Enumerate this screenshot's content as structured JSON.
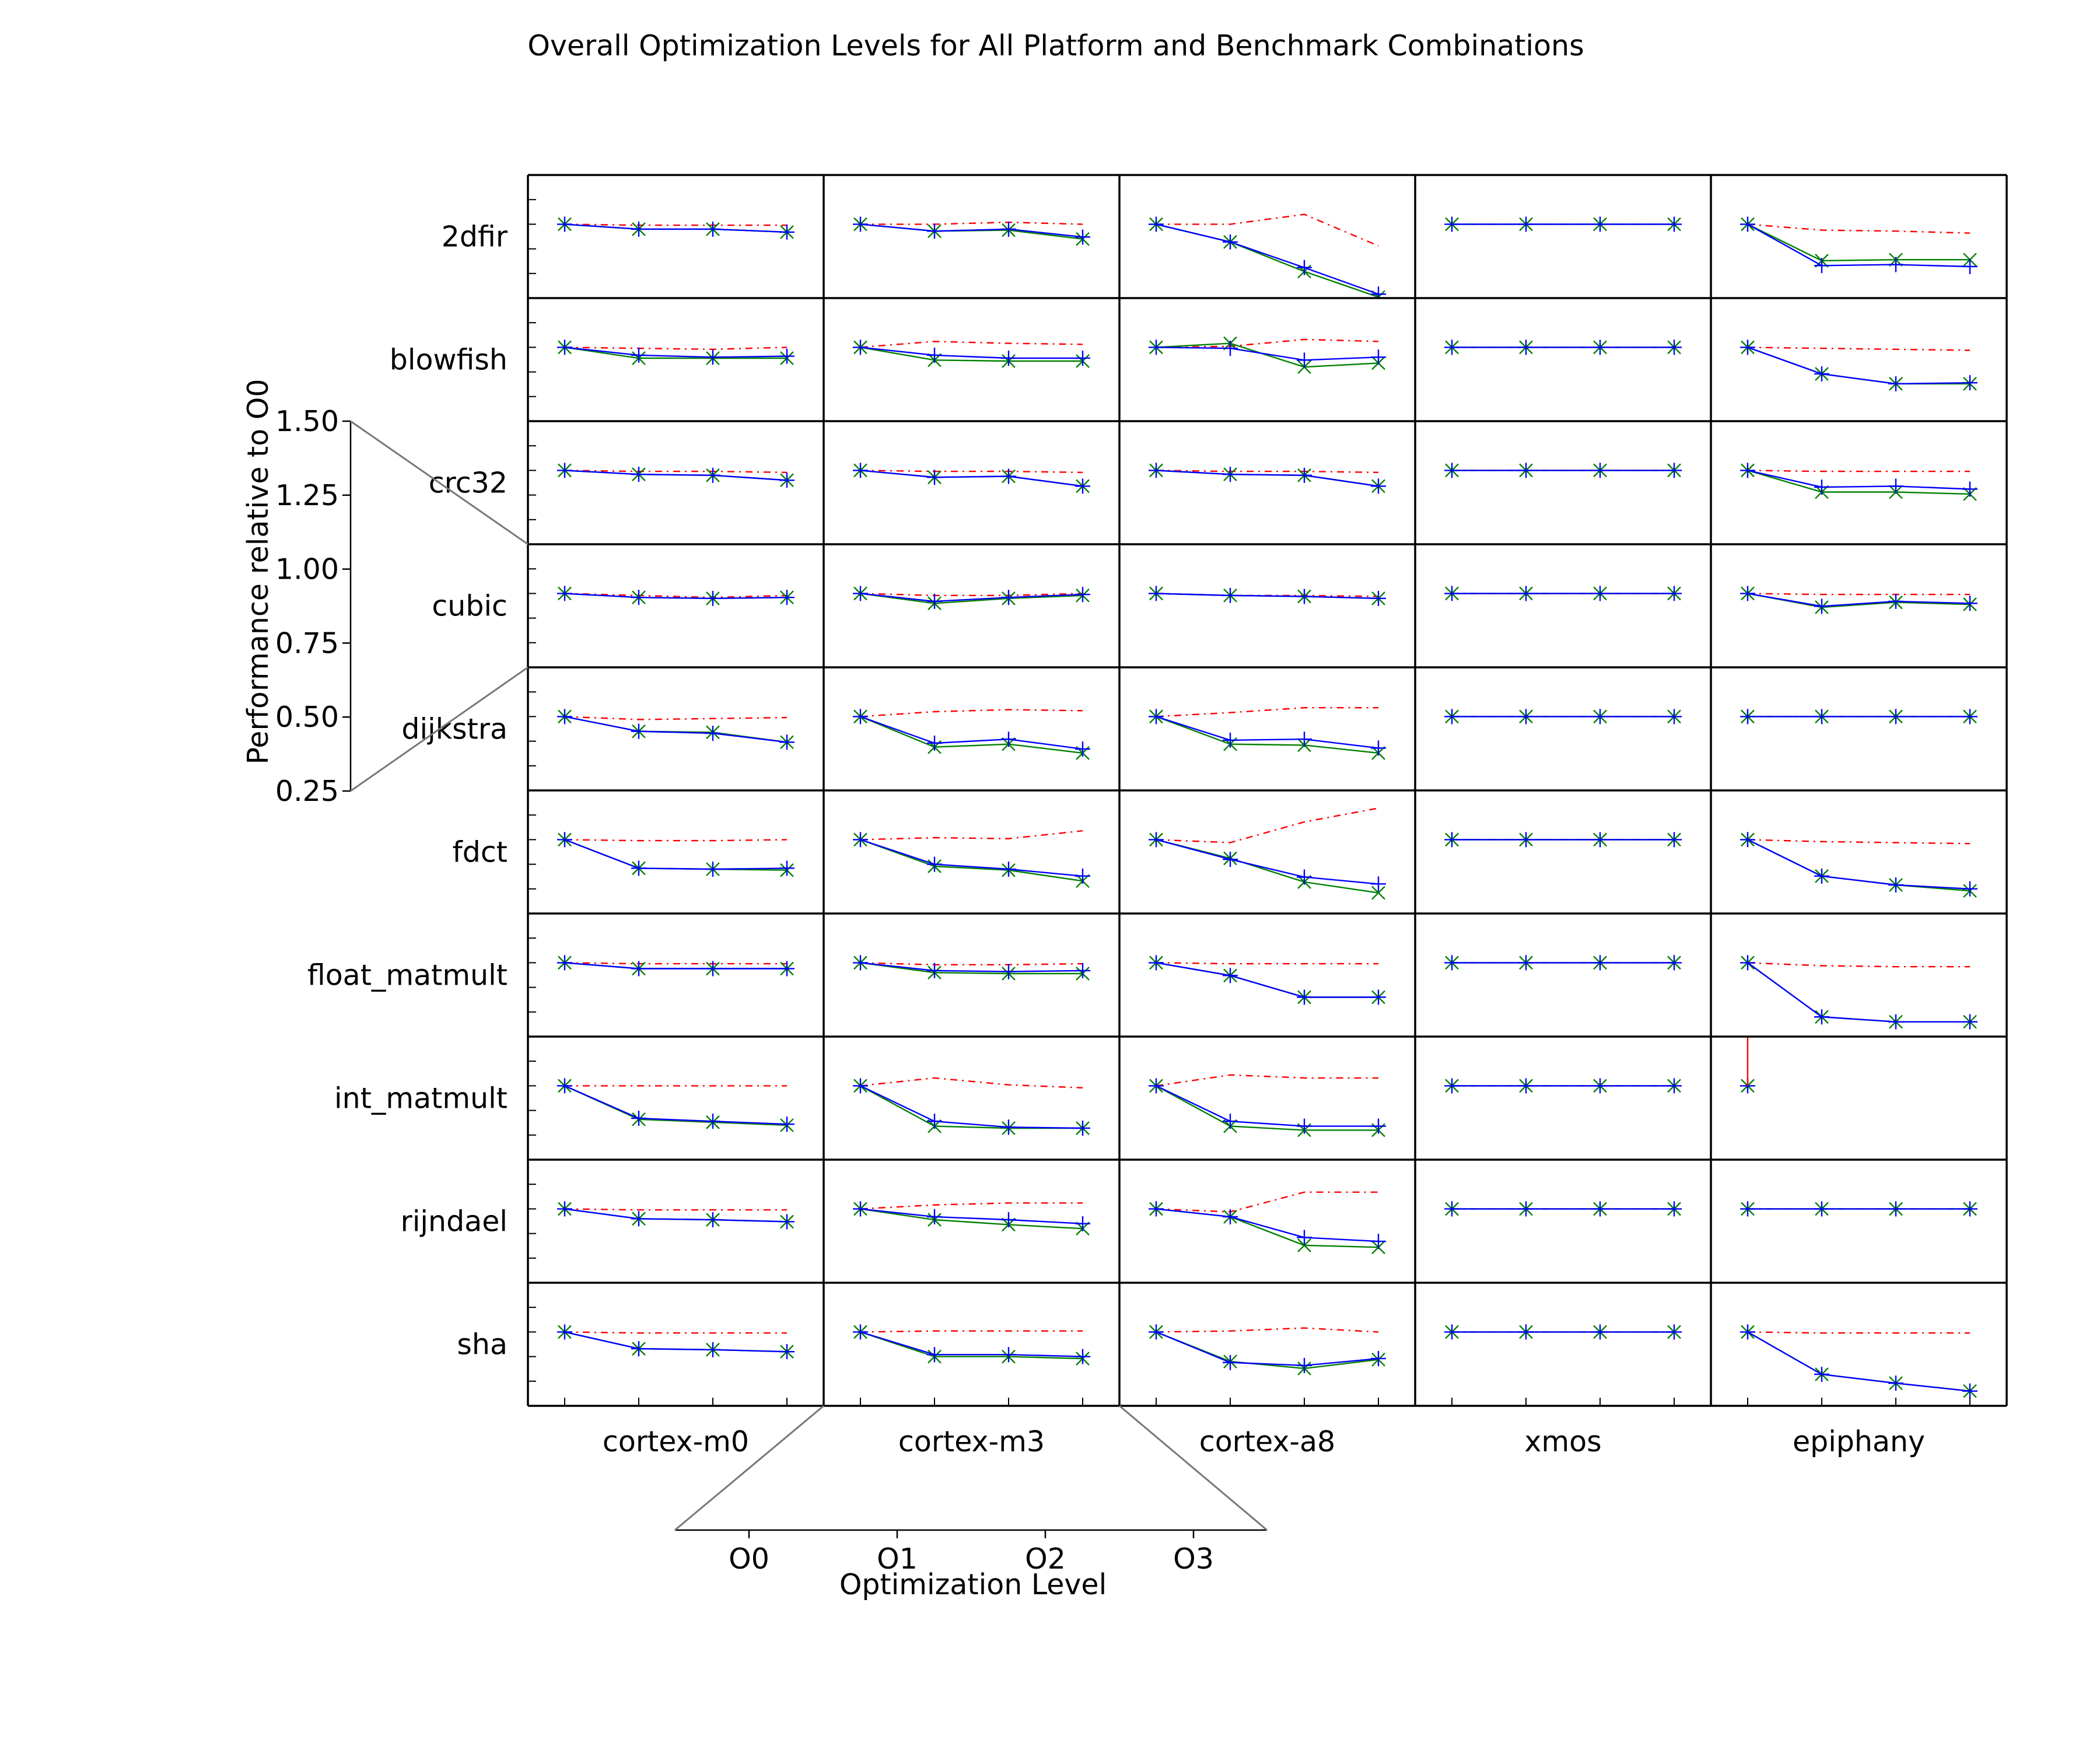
{
  "chart_data": {
    "type": "line",
    "title": "Overall Optimization Levels for All Platform and Benchmark Combinations",
    "xlabel": "Optimization Level",
    "ylabel": "Performance relative to O0",
    "levels": [
      "O0",
      "O1",
      "O2",
      "O3"
    ],
    "yticks": [
      "1.50",
      "1.25",
      "1.00",
      "0.75",
      "0.50",
      "0.25"
    ],
    "ylim": [
      0.25,
      1.5
    ],
    "platforms": [
      "cortex-m0",
      "cortex-m3",
      "cortex-a8",
      "xmos",
      "epiphany"
    ],
    "benchmarks": [
      "2dfir",
      "blowfish",
      "crc32",
      "cubic",
      "dijkstra",
      "fdct",
      "float_matmult",
      "int_matmult",
      "rijndael",
      "sha"
    ],
    "series_styles": [
      {
        "marker": "none",
        "color": "#ff0000",
        "dash": "dash-dot"
      },
      {
        "marker": "plus",
        "color": "#0000ff",
        "dash": "solid"
      },
      {
        "marker": "x",
        "color": "#008000",
        "dash": "solid"
      }
    ],
    "legend": "none",
    "grid": false,
    "cells": [
      [
        [
          [
            1.0,
            0.99,
            0.99,
            0.99
          ],
          [
            1.0,
            0.95,
            0.95,
            0.92
          ],
          [
            1.0,
            0.95,
            0.95,
            0.92
          ]
        ],
        [
          [
            1.0,
            1.0,
            1.02,
            1.0
          ],
          [
            1.0,
            0.93,
            0.95,
            0.87
          ],
          [
            1.0,
            0.93,
            0.94,
            0.85
          ]
        ],
        [
          [
            1.0,
            1.0,
            1.1,
            0.78
          ],
          [
            1.0,
            0.82,
            0.56,
            0.29
          ],
          [
            1.0,
            0.82,
            0.52,
            0.26
          ]
        ],
        [
          [
            1.0,
            1.0,
            1.0,
            1.0
          ],
          [
            1.0,
            1.0,
            1.0,
            1.0
          ],
          [
            1.0,
            1.0,
            1.0,
            1.0
          ]
        ],
        [
          [
            1.0,
            0.94,
            0.93,
            0.91
          ],
          [
            1.0,
            0.58,
            0.59,
            0.57
          ],
          [
            1.0,
            0.63,
            0.64,
            0.64
          ]
        ]
      ],
      [
        [
          [
            1.0,
            0.99,
            0.98,
            1.0
          ],
          [
            1.0,
            0.92,
            0.9,
            0.91
          ],
          [
            1.0,
            0.89,
            0.89,
            0.89
          ]
        ],
        [
          [
            1.0,
            1.06,
            1.04,
            1.03
          ],
          [
            1.0,
            0.92,
            0.89,
            0.89
          ],
          [
            1.0,
            0.87,
            0.86,
            0.86
          ]
        ],
        [
          [
            1.0,
            1.01,
            1.08,
            1.06
          ],
          [
            1.0,
            0.99,
            0.87,
            0.9
          ],
          [
            1.0,
            1.04,
            0.8,
            0.84
          ]
        ],
        [
          [
            1.0,
            1.0,
            1.0,
            1.0
          ],
          [
            1.0,
            1.0,
            1.0,
            1.0
          ],
          [
            1.0,
            1.0,
            1.0,
            1.0
          ]
        ],
        [
          [
            1.0,
            0.99,
            0.98,
            0.97
          ],
          [
            1.0,
            0.73,
            0.63,
            0.64
          ],
          [
            1.0,
            0.73,
            0.63,
            0.63
          ]
        ]
      ],
      [
        [
          [
            1.0,
            0.99,
            0.99,
            0.98
          ],
          [
            1.0,
            0.96,
            0.95,
            0.9
          ],
          [
            1.0,
            0.96,
            0.95,
            0.9
          ]
        ],
        [
          [
            1.0,
            0.99,
            0.99,
            0.98
          ],
          [
            1.0,
            0.93,
            0.94,
            0.84
          ],
          [
            1.0,
            0.93,
            0.94,
            0.84
          ]
        ],
        [
          [
            1.0,
            0.99,
            0.99,
            0.98
          ],
          [
            1.0,
            0.96,
            0.95,
            0.84
          ],
          [
            1.0,
            0.96,
            0.95,
            0.84
          ]
        ],
        [
          [
            1.0,
            1.0,
            1.0,
            1.0
          ],
          [
            1.0,
            1.0,
            1.0,
            1.0
          ],
          [
            1.0,
            1.0,
            1.0,
            1.0
          ]
        ],
        [
          [
            1.0,
            0.99,
            0.99,
            0.99
          ],
          [
            1.0,
            0.83,
            0.84,
            0.81
          ],
          [
            1.0,
            0.78,
            0.78,
            0.76
          ]
        ]
      ],
      [
        [
          [
            1.0,
            0.98,
            0.96,
            0.98
          ],
          [
            1.0,
            0.96,
            0.95,
            0.96
          ],
          [
            1.0,
            0.96,
            0.95,
            0.96
          ]
        ],
        [
          [
            1.0,
            0.98,
            0.98,
            1.0
          ],
          [
            1.0,
            0.92,
            0.96,
            0.99
          ],
          [
            1.0,
            0.9,
            0.95,
            0.98
          ]
        ],
        [
          [
            1.0,
            0.98,
            0.98,
            0.97
          ],
          [
            1.0,
            0.98,
            0.97,
            0.95
          ],
          [
            1.0,
            0.98,
            0.97,
            0.95
          ]
        ],
        [
          [
            1.0,
            1.0,
            1.0,
            1.0
          ],
          [
            1.0,
            1.0,
            1.0,
            1.0
          ],
          [
            1.0,
            1.0,
            1.0,
            1.0
          ]
        ],
        [
          [
            1.0,
            0.99,
            0.99,
            0.99
          ],
          [
            1.0,
            0.87,
            0.92,
            0.9
          ],
          [
            1.0,
            0.86,
            0.91,
            0.89
          ]
        ]
      ],
      [
        [
          [
            1.0,
            0.97,
            0.98,
            0.99
          ],
          [
            1.0,
            0.85,
            0.83,
            0.74
          ],
          [
            1.0,
            0.85,
            0.84,
            0.74
          ]
        ],
        [
          [
            1.0,
            1.05,
            1.07,
            1.06
          ],
          [
            1.0,
            0.73,
            0.77,
            0.67
          ],
          [
            1.0,
            0.69,
            0.72,
            0.63
          ]
        ],
        [
          [
            1.0,
            1.04,
            1.09,
            1.09
          ],
          [
            1.0,
            0.76,
            0.77,
            0.68
          ],
          [
            1.0,
            0.72,
            0.71,
            0.63
          ]
        ],
        [
          [
            1.0,
            1.0,
            1.0,
            1.0
          ],
          [
            1.0,
            1.0,
            1.0,
            1.0
          ],
          [
            1.0,
            1.0,
            1.0,
            1.0
          ]
        ],
        [
          [
            1.0,
            1.0,
            1.0,
            1.0
          ],
          [
            1.0,
            1.0,
            1.0,
            1.0
          ],
          [
            1.0,
            1.0,
            1.0,
            1.0
          ]
        ]
      ],
      [
        [
          [
            1.0,
            0.99,
            0.99,
            1.0
          ],
          [
            1.0,
            0.71,
            0.7,
            0.71
          ],
          [
            1.0,
            0.71,
            0.7,
            0.69
          ]
        ],
        [
          [
            1.0,
            1.02,
            1.01,
            1.09
          ],
          [
            1.0,
            0.75,
            0.7,
            0.63
          ],
          [
            1.0,
            0.73,
            0.69,
            0.58
          ]
        ],
        [
          [
            1.0,
            0.97,
            1.18,
            1.32
          ],
          [
            1.0,
            0.8,
            0.62,
            0.55
          ],
          [
            1.0,
            0.81,
            0.57,
            0.46
          ]
        ],
        [
          [
            1.0,
            1.0,
            1.0,
            1.0
          ],
          [
            1.0,
            1.0,
            1.0,
            1.0
          ],
          [
            1.0,
            1.0,
            1.0,
            1.0
          ]
        ],
        [
          [
            1.0,
            0.98,
            0.97,
            0.96
          ],
          [
            1.0,
            0.63,
            0.54,
            0.5
          ],
          [
            1.0,
            0.63,
            0.54,
            0.48
          ]
        ]
      ],
      [
        [
          [
            1.0,
            0.99,
            0.99,
            0.99
          ],
          [
            1.0,
            0.94,
            0.94,
            0.94
          ],
          [
            1.0,
            0.94,
            0.94,
            0.94
          ]
        ],
        [
          [
            1.0,
            0.98,
            0.98,
            0.99
          ],
          [
            1.0,
            0.92,
            0.91,
            0.92
          ],
          [
            1.0,
            0.9,
            0.89,
            0.89
          ]
        ],
        [
          [
            1.0,
            0.99,
            0.99,
            0.99
          ],
          [
            1.0,
            0.87,
            0.65,
            0.65
          ],
          [
            1.0,
            0.87,
            0.65,
            0.65
          ]
        ],
        [
          [
            1.0,
            1.0,
            1.0,
            1.0
          ],
          [
            1.0,
            1.0,
            1.0,
            1.0
          ],
          [
            1.0,
            1.0,
            1.0,
            1.0
          ]
        ],
        [
          [
            1.0,
            0.97,
            0.96,
            0.96
          ],
          [
            1.0,
            0.45,
            0.4,
            0.4
          ],
          [
            1.0,
            0.45,
            0.4,
            0.4
          ]
        ]
      ],
      [
        [
          [
            1.0,
            1.0,
            1.0,
            1.0
          ],
          [
            1.0,
            0.67,
            0.64,
            0.61
          ],
          [
            1.0,
            0.66,
            0.63,
            0.6
          ]
        ],
        [
          [
            1.0,
            1.08,
            1.01,
            0.98
          ],
          [
            1.0,
            0.64,
            0.58,
            0.57
          ],
          [
            1.0,
            0.59,
            0.57,
            0.57
          ]
        ],
        [
          [
            1.0,
            1.11,
            1.08,
            1.08
          ],
          [
            1.0,
            0.64,
            0.59,
            0.59
          ],
          [
            1.0,
            0.59,
            0.55,
            0.55
          ]
        ],
        [
          [
            1.0,
            1.0,
            1.0,
            1.0
          ],
          [
            1.0,
            1.0,
            1.0,
            1.0
          ],
          [
            1.0,
            1.0,
            1.0,
            1.0
          ]
        ],
        [
          [],
          [
            1.0
          ],
          [
            1.0
          ]
        ]
      ],
      [
        [
          [
            1.0,
            0.99,
            0.99,
            0.99
          ],
          [
            1.0,
            0.9,
            0.89,
            0.87
          ],
          [
            1.0,
            0.9,
            0.89,
            0.87
          ]
        ],
        [
          [
            1.0,
            1.04,
            1.06,
            1.06
          ],
          [
            1.0,
            0.92,
            0.89,
            0.85
          ],
          [
            1.0,
            0.89,
            0.84,
            0.8
          ]
        ],
        [
          [
            1.0,
            0.97,
            1.17,
            1.17
          ],
          [
            1.0,
            0.92,
            0.71,
            0.67
          ],
          [
            1.0,
            0.92,
            0.63,
            0.61
          ]
        ],
        [
          [
            1.0,
            1.0,
            1.0,
            1.0
          ],
          [
            1.0,
            1.0,
            1.0,
            1.0
          ],
          [
            1.0,
            1.0,
            1.0,
            1.0
          ]
        ],
        [
          [
            1.0,
            1.0,
            1.0,
            1.0
          ],
          [
            1.0,
            1.0,
            1.0,
            1.0
          ],
          [
            1.0,
            1.0,
            1.0,
            1.0
          ]
        ]
      ],
      [
        [
          [
            1.0,
            0.99,
            0.99,
            0.99
          ],
          [
            1.0,
            0.83,
            0.82,
            0.8
          ],
          [
            1.0,
            0.83,
            0.82,
            0.8
          ]
        ],
        [
          [
            1.0,
            1.01,
            1.01,
            1.01
          ],
          [
            1.0,
            0.77,
            0.77,
            0.75
          ],
          [
            1.0,
            0.75,
            0.75,
            0.73
          ]
        ],
        [
          [
            1.0,
            1.01,
            1.04,
            1.0
          ],
          [
            1.0,
            0.69,
            0.66,
            0.73
          ],
          [
            1.0,
            0.7,
            0.63,
            0.72
          ]
        ],
        [
          [
            1.0,
            1.0,
            1.0,
            1.0
          ],
          [
            1.0,
            1.0,
            1.0,
            1.0
          ],
          [
            1.0,
            1.0,
            1.0,
            1.0
          ]
        ],
        [
          [
            1.0,
            0.99,
            0.99,
            0.99
          ],
          [
            1.0,
            0.57,
            0.48,
            0.4
          ],
          [
            1.0,
            0.57,
            0.48,
            0.4
          ]
        ]
      ]
    ]
  }
}
